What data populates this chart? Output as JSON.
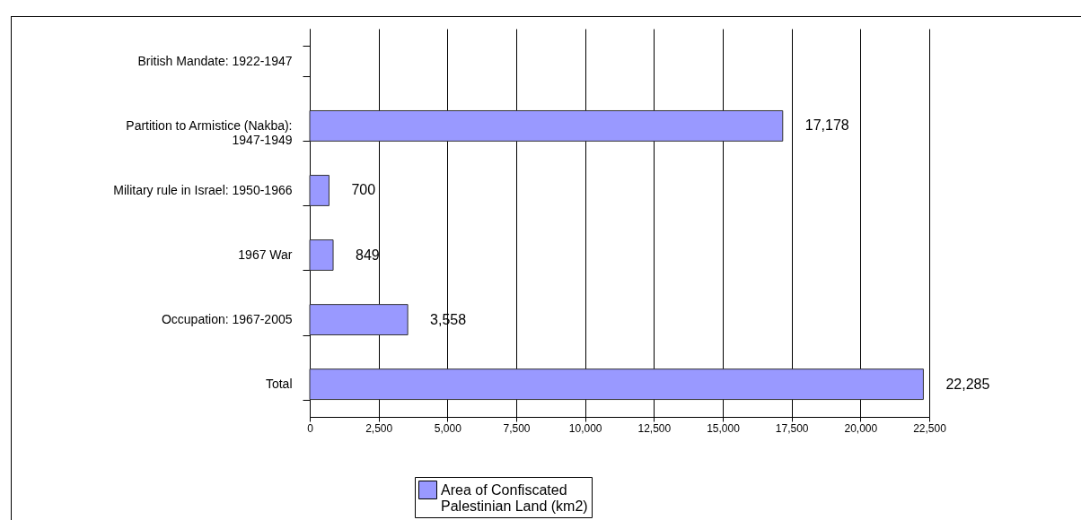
{
  "chart_data": {
    "type": "bar",
    "orientation": "horizontal",
    "categories": [
      "British Mandate: 1922-1947",
      "Partition to Armistice (Nakba): 1947-1949",
      "Military rule in Israel: 1950-1966",
      "1967 War",
      "Occupation: 1967-2005",
      "Total"
    ],
    "series": [
      {
        "name": "Area of Confiscated Palestinian Land (km2)",
        "color": "#9999ff",
        "values": [
          null,
          17178,
          700,
          849,
          3558,
          22285
        ],
        "value_labels": [
          null,
          "17,178",
          "700",
          "849",
          "3,558",
          "22,285"
        ]
      }
    ],
    "xlim": [
      0,
      22500
    ],
    "xticks": [
      0,
      {
        "value": 2500,
        "label": "2,500"
      },
      {
        "value": 5000,
        "label": "5,000"
      },
      {
        "value": 7500,
        "label": "7,500"
      },
      {
        "value": 10000,
        "label": "10,000"
      },
      {
        "value": 12500,
        "label": "12,500"
      },
      {
        "value": 15000,
        "label": "15,000"
      },
      {
        "value": 17500,
        "label": "17,500"
      },
      {
        "value": 20000,
        "label": "20,000"
      },
      {
        "value": 22500,
        "label": "22,500"
      }
    ],
    "grid": "x",
    "legend": "bottom"
  }
}
